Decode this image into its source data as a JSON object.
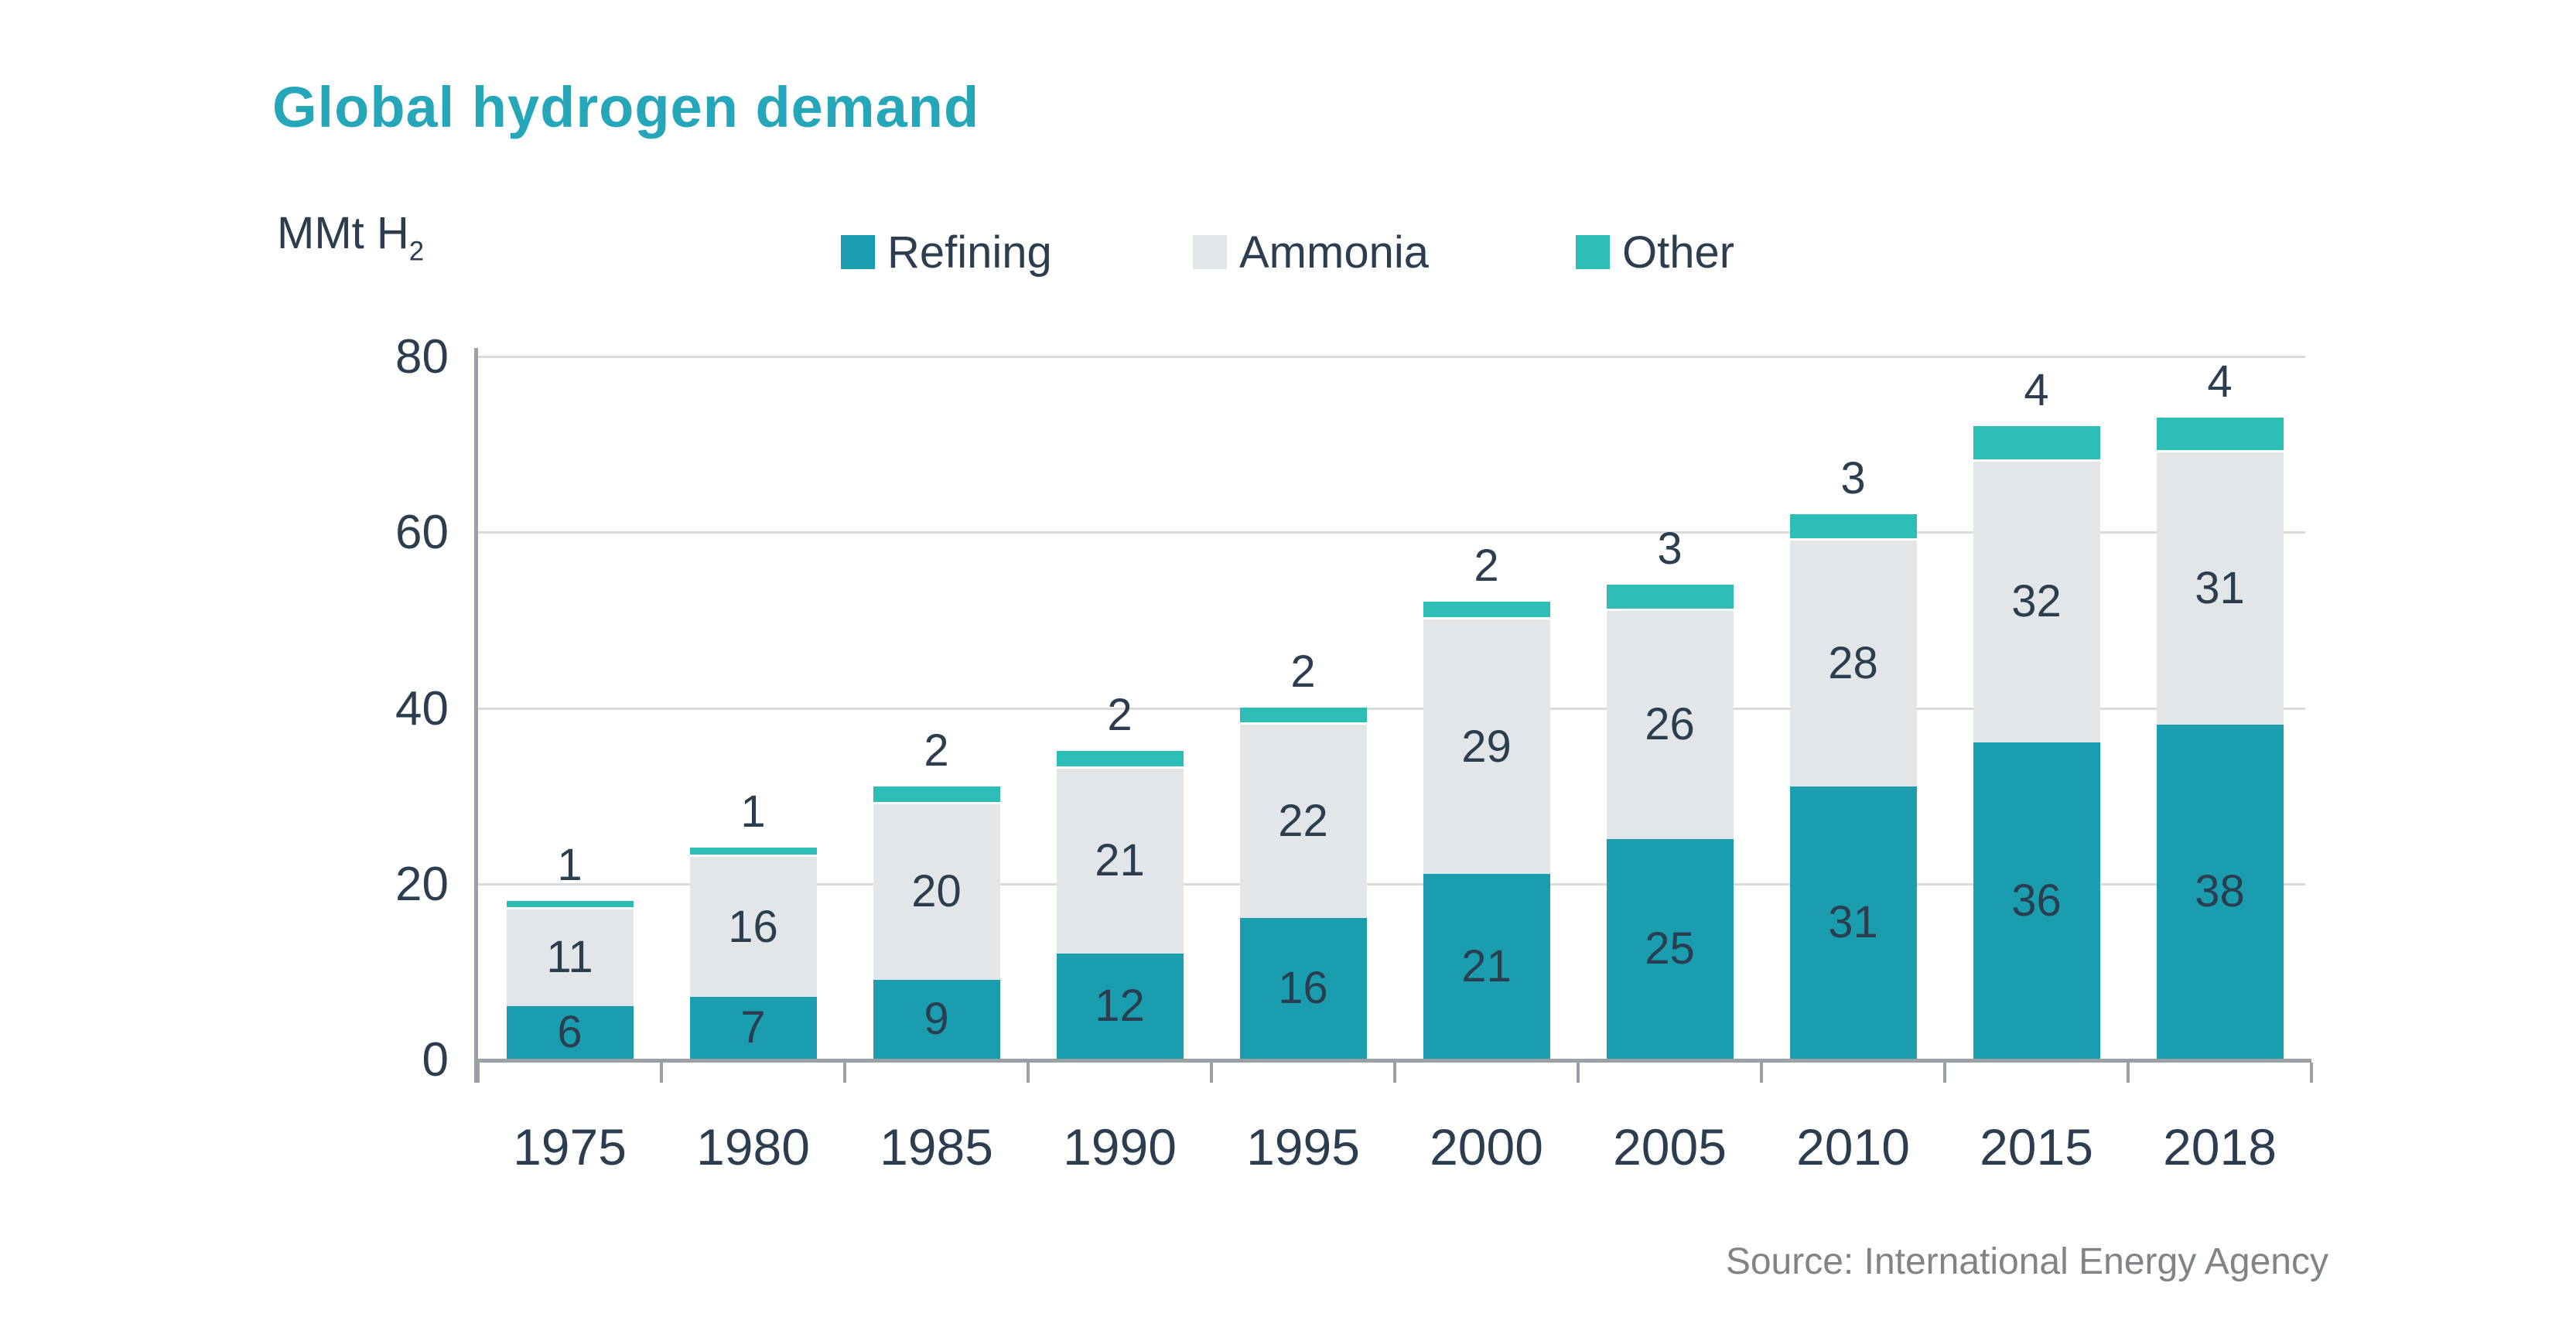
{
  "page": {
    "title": "Global hydrogen demand",
    "unit_label": {
      "text": "MMt H",
      "subscript": "2"
    },
    "source": "Source: International Energy Agency"
  },
  "legend": {
    "items": [
      {
        "label": "Refining",
        "color": "#1A9EAF"
      },
      {
        "label": "Ammonia",
        "color": "#E2E6E9"
      },
      {
        "label": "Other",
        "color": "#2CBEB4"
      }
    ]
  },
  "colors": {
    "title": "#26A6B9",
    "text_dark": "#2B3E4F",
    "axis": "#9BA0A5",
    "gridline": "#D8DBDE",
    "source_text": "#7F8487",
    "background": "#FFFFFF"
  },
  "chart_data": {
    "type": "bar",
    "stacked": true,
    "title": "Global hydrogen demand",
    "unit": "MMt H2",
    "categories": [
      "1975",
      "1980",
      "1985",
      "1990",
      "1995",
      "2000",
      "2005",
      "2010",
      "2015",
      "2018"
    ],
    "series": [
      {
        "name": "Refining",
        "color": "#1A9EAF",
        "values": [
          6,
          7,
          9,
          12,
          16,
          21,
          25,
          31,
          36,
          38
        ]
      },
      {
        "name": "Ammonia",
        "color": "#E2E6E9",
        "values": [
          11,
          16,
          20,
          21,
          22,
          29,
          26,
          28,
          32,
          31
        ]
      },
      {
        "name": "Other",
        "color": "#2CBEB4",
        "values": [
          1,
          1,
          2,
          2,
          2,
          2,
          3,
          3,
          4,
          4
        ]
      }
    ],
    "totals": [
      18,
      24,
      31,
      35,
      40,
      52,
      54,
      62,
      72,
      73
    ],
    "ylim": [
      0,
      80
    ],
    "yticks": [
      0,
      20,
      40,
      60,
      80
    ],
    "grid": true,
    "legend_position": "top",
    "value_label_style": "Refining and Ammonia values inside segments; Other value above bar top",
    "source": "Source: International Energy Agency"
  }
}
